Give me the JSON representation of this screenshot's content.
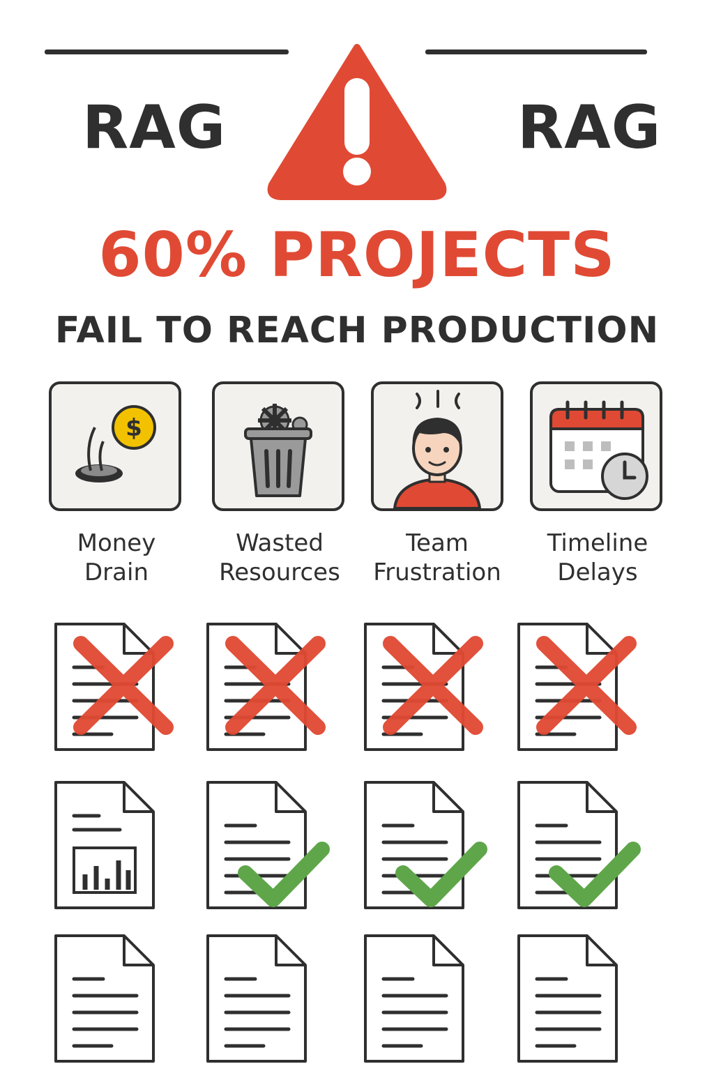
{
  "header": {
    "left_label": "RAG",
    "right_label": "RAG",
    "icon": "warning-triangle-icon"
  },
  "headline": {
    "stat": "60% PROJECTS",
    "subtitle": "FAIL TO REACH PRODUCTION"
  },
  "impacts": [
    {
      "icon": "money-drain-icon",
      "line1": "Money",
      "line2": "Drain"
    },
    {
      "icon": "trash-can-gear-icon",
      "line1": "Wasted",
      "line2": "Resources"
    },
    {
      "icon": "frustrated-person-icon",
      "line1": "Team",
      "line2": "Frustration"
    },
    {
      "icon": "calendar-clock-icon",
      "line1": "Timeline",
      "line2": "Delays"
    }
  ],
  "colors": {
    "alert_red": "#e04a34",
    "success_green": "#5fa64a",
    "text_dark": "#2f2f2f",
    "coin_yellow": "#f2c200"
  },
  "documents": {
    "rows": [
      [
        "failed",
        "failed",
        "failed",
        "failed"
      ],
      [
        "pending",
        "succeeded",
        "succeeded",
        "succeeded"
      ],
      [
        "pending",
        "pending",
        "pending",
        "pending"
      ]
    ]
  }
}
